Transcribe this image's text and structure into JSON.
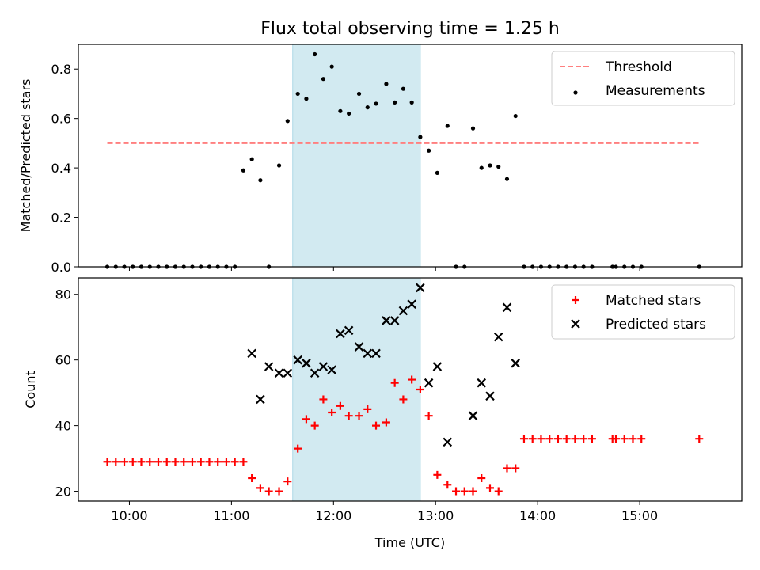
{
  "title": "Flux total observing time = 1.25 h",
  "colors": {
    "threshold": "#ff7f7f",
    "measurements": "#000000",
    "matched": "#ff0000",
    "predicted": "#000000",
    "highlight": "#add8e6"
  },
  "chart_data": [
    {
      "type": "scatter",
      "ylabel": "Matched/Predicted stars",
      "xlim": [
        9.5,
        16.0
      ],
      "ylim": [
        0,
        0.9
      ],
      "yticks": [
        "0.0",
        "0.2",
        "0.4",
        "0.6",
        "0.8"
      ],
      "xtick_labels_visible": false,
      "legend_position": "top-right",
      "highlight_span": [
        "11:36",
        "12:51"
      ],
      "threshold": {
        "name": "Threshold",
        "style": "dashed",
        "x": [
          "09:47",
          "15:35"
        ],
        "y": 0.5
      },
      "series": [
        {
          "name": "Measurements",
          "x": [
            "09:47",
            "09:52",
            "09:57",
            "10:02",
            "10:07",
            "10:12",
            "10:17",
            "10:22",
            "10:27",
            "10:32",
            "10:37",
            "10:42",
            "10:47",
            "10:52",
            "10:57",
            "11:02",
            "11:07",
            "11:12",
            "11:17",
            "11:22",
            "11:28",
            "11:33",
            "11:39",
            "11:44",
            "11:49",
            "11:54",
            "11:59",
            "12:04",
            "12:09",
            "12:15",
            "12:20",
            "12:25",
            "12:31",
            "12:36",
            "12:41",
            "12:46",
            "12:51",
            "12:56",
            "13:01",
            "13:07",
            "13:12",
            "13:17",
            "13:22",
            "13:27",
            "13:32",
            "13:37",
            "13:42",
            "13:47",
            "13:52",
            "13:57",
            "14:02",
            "14:07",
            "14:12",
            "14:17",
            "14:22",
            "14:27",
            "14:32",
            "14:44",
            "14:46",
            "14:51",
            "14:56",
            "15:01",
            "15:35"
          ],
          "y": [
            0,
            0,
            0,
            0,
            0,
            0,
            0,
            0,
            0,
            0,
            0,
            0,
            0,
            0,
            0,
            0,
            0.39,
            0.435,
            0.35,
            0,
            0.41,
            0.59,
            0.7,
            0.68,
            0.86,
            0.76,
            0.81,
            0.63,
            0.62,
            0.7,
            0.645,
            0.66,
            0.74,
            0.665,
            0.72,
            0.665,
            0.525,
            0.47,
            0.38,
            0.57,
            0,
            0,
            0.56,
            0.4,
            0.41,
            0.405,
            0.355,
            0.61,
            0,
            0,
            0,
            0,
            0,
            0,
            0,
            0,
            0,
            0,
            0,
            0,
            0,
            0,
            0
          ]
        }
      ]
    },
    {
      "type": "scatter",
      "xlabel": "Time (UTC)",
      "ylabel": "Count",
      "xlim": [
        9.5,
        16.0
      ],
      "ylim": [
        17,
        85
      ],
      "xticks": [
        "10:00",
        "11:00",
        "12:00",
        "13:00",
        "14:00",
        "15:00"
      ],
      "yticks": [
        "20",
        "40",
        "60",
        "80"
      ],
      "legend_position": "top-right",
      "highlight_span": [
        "11:36",
        "12:51"
      ],
      "series": [
        {
          "name": "Matched stars",
          "marker": "plus",
          "x": [
            "09:47",
            "09:52",
            "09:57",
            "10:02",
            "10:07",
            "10:12",
            "10:17",
            "10:22",
            "10:27",
            "10:32",
            "10:37",
            "10:42",
            "10:47",
            "10:52",
            "10:57",
            "11:02",
            "11:07",
            "11:12",
            "11:17",
            "11:22",
            "11:28",
            "11:33",
            "11:39",
            "11:44",
            "11:49",
            "11:54",
            "11:59",
            "12:04",
            "12:09",
            "12:15",
            "12:20",
            "12:25",
            "12:31",
            "12:36",
            "12:41",
            "12:46",
            "12:51",
            "12:56",
            "13:01",
            "13:07",
            "13:12",
            "13:17",
            "13:22",
            "13:27",
            "13:32",
            "13:37",
            "13:42",
            "13:47",
            "13:52",
            "13:57",
            "14:02",
            "14:07",
            "14:12",
            "14:17",
            "14:22",
            "14:27",
            "14:32",
            "14:44",
            "14:46",
            "14:51",
            "14:56",
            "15:01",
            "15:35"
          ],
          "y": [
            29,
            29,
            29,
            29,
            29,
            29,
            29,
            29,
            29,
            29,
            29,
            29,
            29,
            29,
            29,
            29,
            29,
            24,
            21,
            20,
            20,
            23,
            33,
            42,
            40,
            48,
            44,
            46,
            43,
            43,
            45,
            40,
            41,
            53,
            48,
            54,
            51,
            43,
            25,
            22,
            20,
            20,
            20,
            24,
            21,
            20,
            27,
            27,
            36,
            36,
            36,
            36,
            36,
            36,
            36,
            36,
            36,
            36,
            36,
            36,
            36,
            36,
            36
          ]
        },
        {
          "name": "Predicted stars",
          "marker": "x",
          "x": [
            "11:12",
            "11:17",
            "11:22",
            "11:28",
            "11:33",
            "11:39",
            "11:44",
            "11:49",
            "11:54",
            "11:59",
            "12:04",
            "12:09",
            "12:15",
            "12:20",
            "12:25",
            "12:31",
            "12:36",
            "12:41",
            "12:46",
            "12:51",
            "12:56",
            "13:01",
            "13:07",
            "13:22",
            "13:27",
            "13:32",
            "13:37",
            "13:42",
            "13:47"
          ],
          "y": [
            62,
            48,
            58,
            56,
            56,
            60,
            59,
            56,
            58,
            57,
            68,
            69,
            64,
            62,
            62,
            72,
            72,
            75,
            77,
            82,
            53,
            58,
            35,
            43,
            53,
            49,
            67,
            76,
            59
          ]
        }
      ]
    }
  ]
}
